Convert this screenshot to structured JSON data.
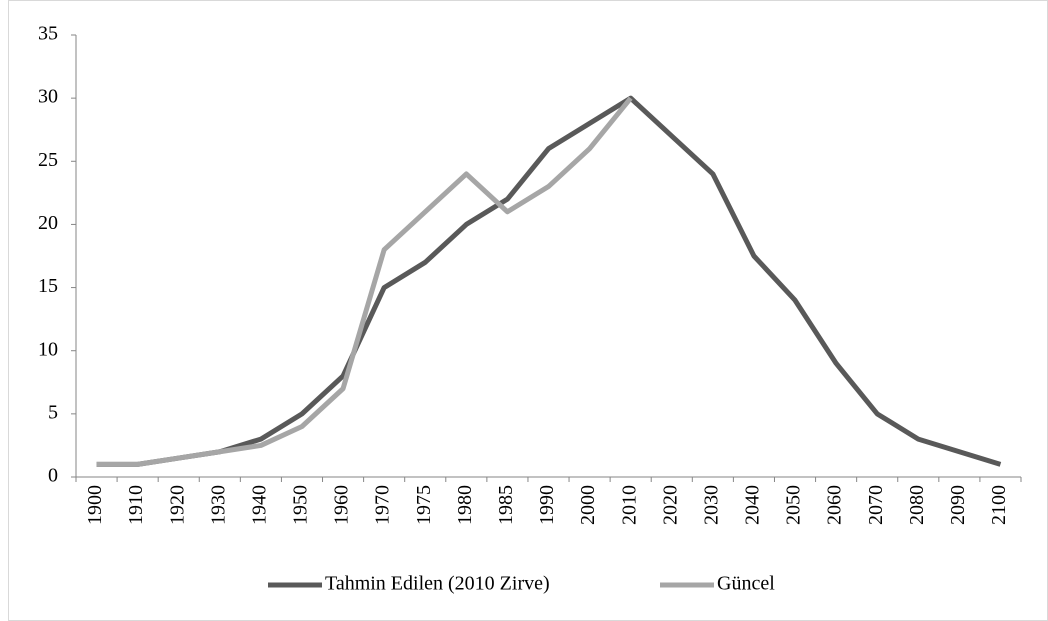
{
  "chart_data": {
    "type": "line",
    "categories": [
      "1900",
      "1910",
      "1920",
      "1930",
      "1940",
      "1950",
      "1960",
      "1970",
      "1975",
      "1980",
      "1985",
      "1990",
      "2000",
      "2010",
      "2020",
      "2030",
      "2040",
      "2050",
      "2060",
      "2070",
      "2080",
      "2090",
      "2100"
    ],
    "series": [
      {
        "name": "Tahmin Edilen (2010 Zirve)",
        "color": "#595959",
        "values": [
          1,
          1,
          1.5,
          2,
          3,
          5,
          8,
          15,
          17,
          20,
          22,
          26,
          28,
          30,
          27,
          24,
          17.5,
          14,
          9,
          5,
          3,
          2,
          1
        ]
      },
      {
        "name": "Güncel",
        "color": "#a6a6a6",
        "values": [
          1,
          1,
          1.5,
          2,
          2.5,
          4,
          7,
          18,
          21,
          24,
          21,
          23,
          26,
          30,
          null,
          null,
          null,
          null,
          null,
          null,
          null,
          null,
          null
        ]
      }
    ],
    "ylim": [
      0,
      35
    ],
    "yticks": [
      0,
      5,
      10,
      15,
      20,
      25,
      30,
      35
    ],
    "grid": false,
    "legend": "bottom"
  }
}
